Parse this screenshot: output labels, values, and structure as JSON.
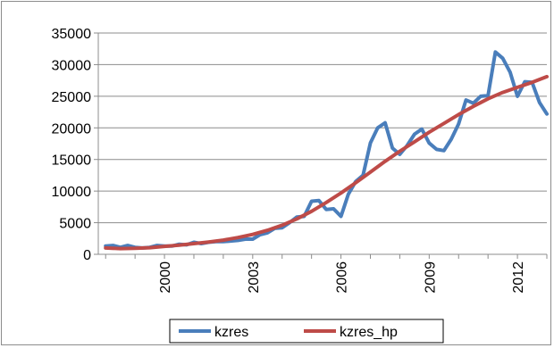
{
  "chart_data": {
    "type": "line",
    "title": "",
    "xlabel": "",
    "ylabel": "",
    "ylim": [
      0,
      35000
    ],
    "y_ticks": [
      0,
      5000,
      10000,
      15000,
      20000,
      25000,
      30000,
      35000
    ],
    "y_tick_labels": [
      "0",
      "5000",
      "10000",
      "15000",
      "20000",
      "25000",
      "30000",
      "35000"
    ],
    "x_tick_labels": [
      "2000",
      "2003",
      "2006",
      "2009",
      "2012"
    ],
    "x_tick_positions": [
      2000,
      2003,
      2006,
      2009,
      2012
    ],
    "x_range": [
      1997.75,
      2013.0
    ],
    "grid": "horizontal",
    "legend_position": "bottom",
    "series": [
      {
        "name": "kzres",
        "color": "#4a7ebb",
        "points": [
          [
            1998.0,
            1300
          ],
          [
            1998.25,
            1400
          ],
          [
            1998.5,
            1100
          ],
          [
            1998.75,
            1400
          ],
          [
            1999.0,
            1100
          ],
          [
            1999.25,
            1000
          ],
          [
            1999.5,
            1100
          ],
          [
            1999.75,
            1400
          ],
          [
            2000.0,
            1300
          ],
          [
            2000.25,
            1300
          ],
          [
            2000.5,
            1600
          ],
          [
            2000.75,
            1500
          ],
          [
            2001.0,
            1900
          ],
          [
            2001.25,
            1700
          ],
          [
            2001.5,
            1900
          ],
          [
            2001.75,
            2000
          ],
          [
            2002.0,
            2000
          ],
          [
            2002.25,
            2100
          ],
          [
            2002.5,
            2200
          ],
          [
            2002.75,
            2400
          ],
          [
            2003.0,
            2400
          ],
          [
            2003.25,
            3100
          ],
          [
            2003.5,
            3400
          ],
          [
            2003.75,
            4100
          ],
          [
            2004.0,
            4200
          ],
          [
            2004.25,
            5000
          ],
          [
            2004.5,
            5900
          ],
          [
            2004.75,
            6000
          ],
          [
            2005.0,
            8400
          ],
          [
            2005.25,
            8500
          ],
          [
            2005.5,
            7100
          ],
          [
            2005.75,
            7200
          ],
          [
            2006.0,
            6000
          ],
          [
            2006.25,
            9500
          ],
          [
            2006.5,
            11500
          ],
          [
            2006.75,
            12500
          ],
          [
            2007.0,
            17600
          ],
          [
            2007.25,
            20000
          ],
          [
            2007.5,
            20800
          ],
          [
            2007.75,
            16800
          ],
          [
            2008.0,
            15800
          ],
          [
            2008.25,
            17200
          ],
          [
            2008.5,
            19000
          ],
          [
            2008.75,
            19800
          ],
          [
            2009.0,
            17600
          ],
          [
            2009.25,
            16600
          ],
          [
            2009.5,
            16400
          ],
          [
            2009.75,
            18200
          ],
          [
            2010.0,
            20600
          ],
          [
            2010.25,
            24400
          ],
          [
            2010.5,
            23900
          ],
          [
            2010.75,
            25000
          ],
          [
            2011.0,
            25100
          ],
          [
            2011.25,
            32000
          ],
          [
            2011.5,
            31000
          ],
          [
            2011.75,
            28800
          ],
          [
            2012.0,
            25000
          ],
          [
            2012.25,
            27300
          ],
          [
            2012.5,
            27200
          ],
          [
            2012.75,
            24000
          ],
          [
            2013.0,
            22200
          ]
        ]
      },
      {
        "name": "kzres_hp",
        "color": "#be4b48",
        "points": [
          [
            1998.0,
            1000
          ],
          [
            1998.5,
            900
          ],
          [
            1999.0,
            950
          ],
          [
            1999.5,
            1050
          ],
          [
            2000.0,
            1250
          ],
          [
            2000.5,
            1450
          ],
          [
            2001.0,
            1700
          ],
          [
            2001.5,
            1950
          ],
          [
            2002.0,
            2250
          ],
          [
            2002.5,
            2650
          ],
          [
            2003.0,
            3150
          ],
          [
            2003.5,
            3800
          ],
          [
            2004.0,
            4600
          ],
          [
            2004.5,
            5600
          ],
          [
            2005.0,
            6800
          ],
          [
            2005.5,
            8200
          ],
          [
            2006.0,
            9700
          ],
          [
            2006.5,
            11300
          ],
          [
            2007.0,
            13000
          ],
          [
            2007.5,
            14700
          ],
          [
            2008.0,
            16300
          ],
          [
            2008.5,
            17800
          ],
          [
            2009.0,
            19300
          ],
          [
            2009.5,
            20700
          ],
          [
            2010.0,
            22100
          ],
          [
            2010.5,
            23400
          ],
          [
            2011.0,
            24600
          ],
          [
            2011.5,
            25600
          ],
          [
            2012.0,
            26400
          ],
          [
            2012.5,
            27200
          ],
          [
            2013.0,
            28100
          ]
        ]
      }
    ]
  }
}
